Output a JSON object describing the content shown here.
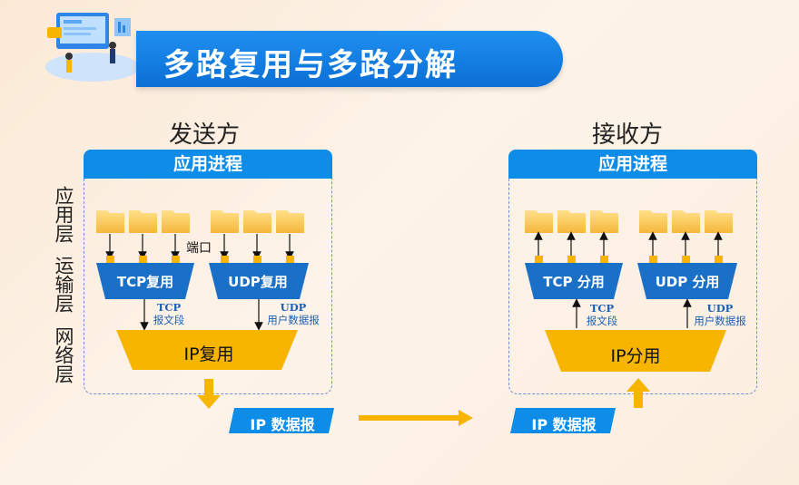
{
  "header": {
    "title": "多路复用与多路分解"
  },
  "sender": {
    "title": "发送方",
    "process_bar": "应用进程",
    "port_label": "端口",
    "tcp_mux": "TCP复用",
    "udp_mux": "UDP复用",
    "tcp_segment": {
      "line1": "TCP",
      "line2": "报文段"
    },
    "udp_datagram": {
      "line1": "UDP",
      "line2": "用户数据报"
    },
    "ip_box": "IP复用",
    "ip_datagram": "IP 数据报"
  },
  "receiver": {
    "title": "接收方",
    "process_bar": "应用进程",
    "tcp_demux": "TCP 分用",
    "udp_demux": "UDP 分用",
    "tcp_segment": {
      "line1": "TCP",
      "line2": "报文段"
    },
    "udp_datagram": {
      "line1": "UDP",
      "line2": "用户数据报"
    },
    "ip_box": "IP分用",
    "ip_datagram": "IP 数据报"
  },
  "layers": {
    "application": "应用层",
    "transport": "运输层",
    "network": "网络层"
  },
  "colors": {
    "primary_blue": "#0e8de8",
    "accent_yellow": "#f7b500",
    "trapezoid_blue": "#1a6fc6"
  }
}
